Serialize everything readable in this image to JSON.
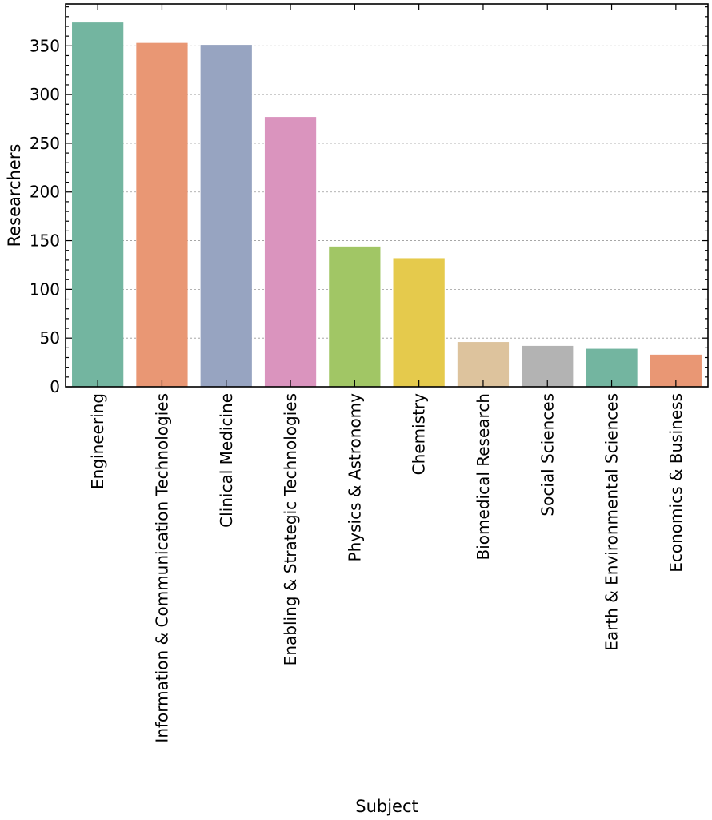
{
  "chart_data": {
    "type": "bar",
    "categories": [
      "Engineering",
      "Information & Communication Technologies",
      "Clinical Medicine",
      "Enabling & Strategic Technologies",
      "Physics & Astronomy",
      "Chemistry",
      "Biomedical Research",
      "Social Sciences",
      "Earth & Environmental Sciences",
      "Economics & Business"
    ],
    "values": [
      374,
      353,
      351,
      277,
      144,
      132,
      46,
      42,
      39,
      33
    ],
    "colors": [
      "#73b5a0",
      "#e99774",
      "#97a4c1",
      "#da94be",
      "#a1c665",
      "#e5ca4c",
      "#ddc39d",
      "#b3b3b3",
      "#73b5a0",
      "#e99774"
    ],
    "xlabel": "Subject",
    "ylabel": "Researchers",
    "ylim": [
      0,
      393
    ],
    "yticks": [
      0,
      50,
      100,
      150,
      200,
      250,
      300,
      350
    ],
    "grid": "horizontal-dashed",
    "legend": "none"
  }
}
